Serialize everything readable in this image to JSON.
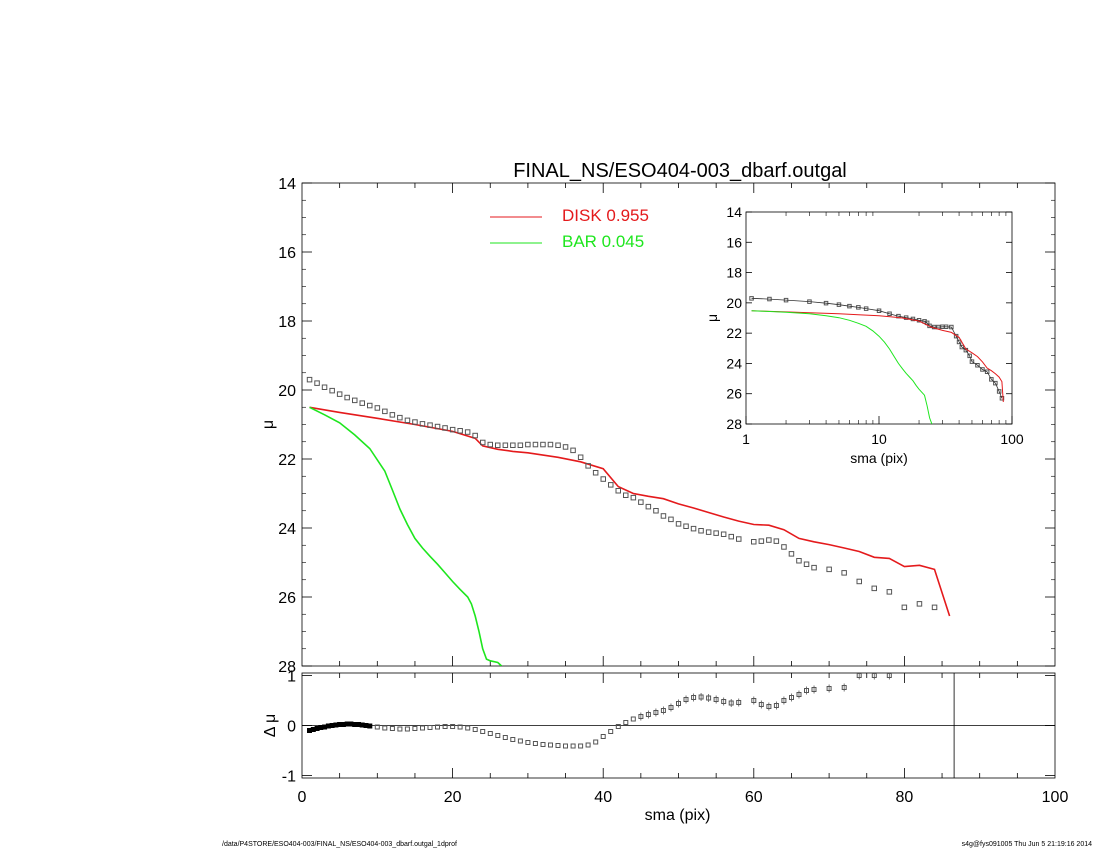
{
  "title": "FINAL_NS/ESO404-003_dbarf.outgal",
  "footer_left": "/data/P4STORE/ESO404-003/FINAL_NS/ESO404-003_dbarf.outgal_1dprof",
  "footer_right": "s4g@fys091005  Thu Jun  5 21:19:16 2014",
  "colors": {
    "disk": "#e41a1c",
    "bar": "#1ee61e",
    "data": "#555555"
  },
  "chart_data": [
    {
      "id": "main",
      "type": "line",
      "xlabel": "",
      "ylabel": "μ",
      "xlim": [
        0,
        100
      ],
      "ylim": [
        28,
        14
      ],
      "yticks": [
        14,
        16,
        18,
        20,
        22,
        24,
        26,
        28
      ],
      "legend": [
        {
          "label": "DISK",
          "value": "0.955",
          "color": "#e41a1c"
        },
        {
          "label": "BAR",
          "value": "0.045",
          "color": "#1ee61e"
        }
      ],
      "series": [
        {
          "name": "DISK",
          "style": "line",
          "x": [
            1,
            5,
            10,
            15,
            20,
            23,
            24,
            26,
            28,
            30,
            34,
            37,
            40,
            42,
            44,
            46,
            48,
            50,
            52,
            54,
            56,
            58,
            60,
            62,
            64,
            66,
            68,
            70,
            72,
            74,
            76,
            78,
            80,
            82,
            84,
            86
          ],
          "y": [
            20.5,
            20.65,
            20.82,
            21.0,
            21.2,
            21.4,
            21.62,
            21.72,
            21.78,
            21.82,
            21.95,
            22.08,
            22.28,
            22.8,
            23.0,
            23.08,
            23.15,
            23.3,
            23.42,
            23.55,
            23.68,
            23.8,
            23.9,
            23.92,
            24.05,
            24.3,
            24.4,
            24.48,
            24.58,
            24.68,
            24.85,
            24.88,
            25.12,
            25.08,
            25.2,
            26.55
          ]
        },
        {
          "name": "BAR",
          "style": "line",
          "x": [
            1,
            3,
            5,
            7,
            9,
            11,
            12,
            13,
            14,
            15,
            16,
            17,
            18,
            19,
            20,
            21,
            22,
            22.5,
            23,
            23.5,
            24,
            24.5,
            25,
            26,
            26.5
          ],
          "y": [
            20.5,
            20.72,
            20.95,
            21.3,
            21.7,
            22.35,
            22.9,
            23.45,
            23.9,
            24.3,
            24.58,
            24.82,
            25.05,
            25.3,
            25.55,
            25.78,
            26.0,
            26.2,
            26.55,
            27.0,
            27.5,
            27.8,
            27.85,
            27.9,
            28.0
          ]
        },
        {
          "name": "",
          "style": "points",
          "x": [
            1,
            2,
            3,
            4,
            5,
            6,
            7,
            8,
            9,
            10,
            11,
            12,
            13,
            14,
            15,
            16,
            17,
            18,
            19,
            20,
            21,
            22,
            23,
            24,
            25,
            26,
            27,
            28,
            29,
            30,
            31,
            32,
            33,
            34,
            35,
            36,
            37,
            38,
            39,
            40,
            41,
            42,
            43,
            44,
            45,
            46,
            47,
            48,
            49,
            50,
            51,
            52,
            53,
            54,
            55,
            56,
            57,
            58,
            60,
            61,
            62,
            63,
            64,
            65,
            66,
            67,
            68,
            70,
            72,
            74,
            76,
            78,
            80,
            82,
            84
          ],
          "y": [
            19.7,
            19.8,
            19.92,
            20.02,
            20.12,
            20.22,
            20.3,
            20.38,
            20.45,
            20.52,
            20.62,
            20.72,
            20.8,
            20.88,
            20.93,
            20.98,
            21.02,
            21.06,
            21.1,
            21.15,
            21.18,
            21.22,
            21.32,
            21.52,
            21.58,
            21.6,
            21.6,
            21.6,
            21.6,
            21.58,
            21.58,
            21.58,
            21.58,
            21.6,
            21.65,
            21.75,
            21.95,
            22.2,
            22.4,
            22.58,
            22.75,
            22.92,
            23.05,
            23.12,
            23.25,
            23.38,
            23.5,
            23.65,
            23.75,
            23.88,
            23.95,
            24.02,
            24.08,
            24.12,
            24.15,
            24.18,
            24.25,
            24.32,
            24.4,
            24.38,
            24.35,
            24.38,
            24.55,
            24.75,
            24.95,
            25.05,
            25.15,
            25.2,
            25.3,
            25.55,
            25.75,
            25.85,
            26.3,
            26.2,
            26.3
          ]
        }
      ]
    },
    {
      "id": "inset",
      "type": "line",
      "xlabel": "sma (pix)",
      "ylabel": "μ",
      "xscale": "log",
      "xlim": [
        1,
        100
      ],
      "ylim": [
        28,
        14
      ],
      "xticks": [
        1,
        10,
        100
      ],
      "yticks": [
        14,
        16,
        18,
        20,
        22,
        24,
        26,
        28
      ],
      "series": [
        {
          "name": "",
          "style": "points",
          "x": [
            1.1,
            1.5,
            2,
            3,
            4,
            5,
            6,
            7,
            8,
            10,
            12,
            14,
            16,
            18,
            20,
            22,
            23,
            24,
            26,
            28,
            30,
            32,
            35,
            38,
            40,
            42,
            45,
            48,
            50,
            55,
            60,
            65,
            70,
            75,
            80,
            84
          ],
          "y": [
            19.7,
            19.75,
            19.82,
            19.92,
            20.02,
            20.12,
            20.22,
            20.3,
            20.38,
            20.52,
            20.72,
            20.88,
            20.98,
            21.06,
            21.15,
            21.22,
            21.32,
            21.52,
            21.6,
            21.6,
            21.58,
            21.58,
            21.6,
            22.2,
            22.58,
            22.92,
            23.12,
            23.5,
            23.88,
            24.12,
            24.4,
            24.55,
            25.05,
            25.3,
            25.85,
            26.3
          ]
        },
        {
          "name": "",
          "style": "line",
          "x": [
            1.1,
            2,
            3,
            5,
            7,
            10,
            15,
            20,
            25,
            30,
            35,
            40,
            45,
            50,
            55,
            60,
            65,
            70,
            75,
            80,
            84,
            86
          ],
          "y": [
            20.52,
            20.6,
            20.65,
            20.72,
            20.78,
            20.85,
            21.0,
            21.2,
            21.62,
            21.82,
            21.95,
            22.28,
            23.05,
            23.3,
            23.55,
            23.9,
            24.3,
            24.48,
            24.68,
            24.9,
            25.2,
            26.55
          ]
        },
        {
          "name": "",
          "style": "line",
          "x": [
            1.1,
            2,
            3,
            4,
            5,
            6,
            7,
            8,
            9,
            10,
            11,
            12,
            13,
            14,
            15,
            16,
            17,
            18,
            19,
            20,
            22,
            23,
            24,
            25
          ],
          "y": [
            20.52,
            20.62,
            20.72,
            20.85,
            20.98,
            21.15,
            21.35,
            21.55,
            21.85,
            22.2,
            22.6,
            23.05,
            23.55,
            24.0,
            24.35,
            24.65,
            24.9,
            25.15,
            25.45,
            25.7,
            26.1,
            26.8,
            27.6,
            28.0
          ]
        }
      ]
    },
    {
      "id": "residual",
      "type": "scatter",
      "xlabel": "sma (pix)",
      "ylabel": "Δ μ",
      "xlim": [
        0,
        100
      ],
      "ylim": [
        -1.05,
        1.05
      ],
      "xticks": [
        0,
        20,
        40,
        60,
        80,
        100
      ],
      "yticks": [
        -1,
        0,
        1
      ],
      "series": [
        {
          "name": "",
          "style": "points",
          "x": [
            1,
            1.5,
            2,
            2.5,
            3,
            3.5,
            4,
            4.5,
            5,
            5.5,
            6,
            6.5,
            7,
            7.5,
            8,
            8.5,
            9,
            10,
            11,
            12,
            13,
            14,
            15,
            16,
            17,
            18,
            19,
            20,
            21,
            22,
            23,
            24,
            25,
            26,
            27,
            28,
            29,
            30,
            31,
            32,
            33,
            34,
            35,
            36,
            37,
            38,
            39,
            40,
            41,
            42,
            43,
            44,
            45,
            46,
            47,
            48,
            49,
            50,
            51,
            52,
            53,
            54,
            55,
            56,
            57,
            58,
            60,
            61,
            62,
            63,
            64,
            65,
            66,
            67,
            68,
            70,
            72,
            74,
            76,
            78
          ],
          "y": [
            -0.1,
            -0.08,
            -0.06,
            -0.04,
            -0.03,
            -0.01,
            0.0,
            0.01,
            0.02,
            0.02,
            0.03,
            0.03,
            0.02,
            0.02,
            0.01,
            0.0,
            -0.01,
            -0.03,
            -0.05,
            -0.06,
            -0.07,
            -0.07,
            -0.06,
            -0.05,
            -0.04,
            -0.03,
            -0.02,
            -0.02,
            -0.03,
            -0.05,
            -0.08,
            -0.12,
            -0.16,
            -0.2,
            -0.24,
            -0.28,
            -0.31,
            -0.34,
            -0.36,
            -0.38,
            -0.39,
            -0.4,
            -0.41,
            -0.41,
            -0.41,
            -0.39,
            -0.33,
            -0.22,
            -0.12,
            -0.02,
            0.06,
            0.13,
            0.18,
            0.22,
            0.26,
            0.3,
            0.36,
            0.44,
            0.52,
            0.56,
            0.57,
            0.55,
            0.52,
            0.48,
            0.45,
            0.46,
            0.5,
            0.42,
            0.38,
            0.4,
            0.5,
            0.56,
            0.62,
            0.7,
            0.72,
            0.74,
            0.76,
            1.0,
            1.0,
            1.0
          ]
        }
      ]
    }
  ]
}
